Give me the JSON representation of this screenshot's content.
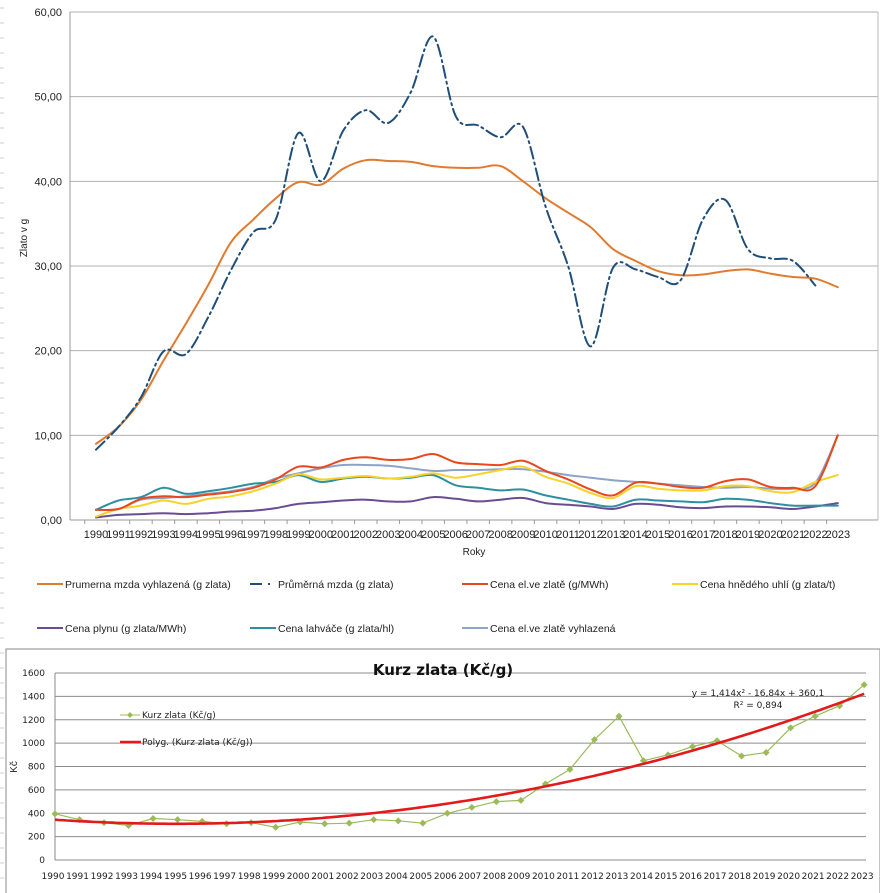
{
  "chart_data": [
    {
      "type": "line",
      "title": "",
      "xlabel": "Roky",
      "ylabel": "Zlato v g",
      "ylim": [
        0,
        60
      ],
      "yticks": [
        "0,00",
        "10,00",
        "20,00",
        "30,00",
        "40,00",
        "50,00",
        "60,00"
      ],
      "ytick_values": [
        0,
        10,
        20,
        30,
        40,
        50,
        60
      ],
      "grid": true,
      "legend_position": "bottom",
      "categories": [
        "1990",
        "1991",
        "1992",
        "1993",
        "1994",
        "1995",
        "1996",
        "1997",
        "1998",
        "1999",
        "2000",
        "2001",
        "2002",
        "2003",
        "2004",
        "2005",
        "2006",
        "2007",
        "2008",
        "2009",
        "2010",
        "2011",
        "2012",
        "2013",
        "2014",
        "2015",
        "2016",
        "2017",
        "2018",
        "2019",
        "2020",
        "2021",
        "2022",
        "2023"
      ],
      "series": [
        {
          "name": "Prumerna mzda vyhlazená (g zlata)",
          "color": "#E07B30",
          "dash": "solid",
          "width": 2,
          "values": [
            9.0,
            11.0,
            14.2,
            18.8,
            23.2,
            27.8,
            32.8,
            35.5,
            38.0,
            39.9,
            39.6,
            41.5,
            42.5,
            42.4,
            42.3,
            41.8,
            41.6,
            41.6,
            41.8,
            40.0,
            38.0,
            36.3,
            34.6,
            32.0,
            30.6,
            29.4,
            28.9,
            29.0,
            29.4,
            29.6,
            29.1,
            28.7,
            28.5,
            27.5
          ]
        },
        {
          "name": "Průměrná mzda (g zlata)",
          "color": "#1F4E79",
          "dash": "12,4,2,4",
          "width": 2,
          "values": [
            8.3,
            11.0,
            14.5,
            19.9,
            19.6,
            24.0,
            29.5,
            34.0,
            35.5,
            45.7,
            40.0,
            46.0,
            48.4,
            46.9,
            50.5,
            57.1,
            47.7,
            46.6,
            45.2,
            46.4,
            37.0,
            30.0,
            20.5,
            29.8,
            29.6,
            28.7,
            28.3,
            35.5,
            37.8,
            32.0,
            30.9,
            30.6,
            27.7,
            null
          ]
        },
        {
          "name": "Cena el.ve zlatě (g/MWh)",
          "color": "#E8481C",
          "dash": "solid",
          "width": 2,
          "values": [
            1.2,
            1.3,
            2.5,
            2.8,
            2.7,
            3.0,
            3.3,
            3.8,
            4.8,
            6.3,
            6.2,
            7.1,
            7.4,
            7.1,
            7.2,
            7.8,
            6.8,
            6.6,
            6.5,
            7.0,
            5.8,
            4.8,
            3.6,
            2.9,
            4.4,
            4.3,
            3.9,
            3.8,
            4.6,
            4.8,
            3.9,
            3.8,
            4.0,
            10.0
          ]
        },
        {
          "name": "Cena hnědého uhlí (g zlata/t)",
          "color": "#F6D22A",
          "dash": "solid",
          "width": 2,
          "values": [
            0.4,
            1.3,
            1.7,
            2.3,
            1.9,
            2.5,
            2.8,
            3.4,
            4.3,
            5.4,
            4.8,
            5.0,
            5.2,
            4.9,
            5.1,
            5.5,
            5.0,
            5.4,
            5.9,
            6.3,
            5.1,
            4.3,
            3.2,
            2.6,
            4.0,
            3.7,
            3.5,
            3.5,
            4.0,
            4.0,
            3.4,
            3.3,
            4.5,
            5.3
          ]
        },
        {
          "name": "Cena plynu (g zlata/MWh)",
          "color": "#6A4C93",
          "dash": "solid",
          "width": 2,
          "values": [
            0.3,
            0.6,
            0.7,
            0.8,
            0.7,
            0.8,
            1.0,
            1.1,
            1.4,
            1.9,
            2.1,
            2.3,
            2.4,
            2.2,
            2.2,
            2.7,
            2.5,
            2.2,
            2.4,
            2.6,
            2.0,
            1.8,
            1.6,
            1.3,
            1.9,
            1.8,
            1.5,
            1.4,
            1.6,
            1.6,
            1.5,
            1.3,
            1.6,
            2.0
          ]
        },
        {
          "name": "Cena lahváče (g zlata/hl)",
          "color": "#2E8FA0",
          "dash": "solid",
          "width": 2,
          "values": [
            1.2,
            2.3,
            2.7,
            3.8,
            3.1,
            3.4,
            3.8,
            4.3,
            4.5,
            5.3,
            4.5,
            4.9,
            5.1,
            4.9,
            5.0,
            5.3,
            4.1,
            3.8,
            3.5,
            3.6,
            2.9,
            2.4,
            1.9,
            1.6,
            2.4,
            2.3,
            2.2,
            2.1,
            2.5,
            2.4,
            2.0,
            1.7,
            1.7,
            1.7
          ]
        },
        {
          "name": "Cena el.ve zlatě vyhlazená",
          "color": "#8EA3C8",
          "dash": "solid",
          "width": 2,
          "values": [
            1.2,
            1.3,
            2.4,
            2.6,
            2.8,
            3.1,
            3.4,
            3.9,
            4.9,
            5.5,
            6.1,
            6.5,
            6.5,
            6.4,
            6.1,
            5.8,
            5.9,
            5.9,
            6.0,
            6.0,
            5.7,
            5.3,
            5.0,
            4.7,
            4.5,
            4.3,
            4.1,
            3.9,
            3.8,
            3.9,
            3.7,
            3.7,
            4.4,
            10.0
          ]
        }
      ]
    },
    {
      "type": "line",
      "title": "Kurz zlata (Kč/g)",
      "xlabel": "",
      "ylabel": "Kč",
      "ylim": [
        0,
        1600
      ],
      "yticks": [
        "0",
        "200",
        "400",
        "600",
        "800",
        "1000",
        "1200",
        "1400",
        "1600"
      ],
      "ytick_values": [
        0,
        200,
        400,
        600,
        800,
        1000,
        1200,
        1400,
        1600
      ],
      "grid": true,
      "legend_position": "top-left",
      "categories": [
        "1990",
        "1991",
        "1992",
        "1993",
        "1994",
        "1995",
        "1996",
        "1997",
        "1998",
        "1999",
        "2000",
        "2001",
        "2002",
        "2003",
        "2004",
        "2005",
        "2006",
        "2007",
        "2008",
        "2009",
        "2010",
        "2011",
        "2012",
        "2013",
        "2014",
        "2015",
        "2016",
        "2017",
        "2018",
        "2019",
        "2020",
        "2021",
        "2022",
        "2023"
      ],
      "series": [
        {
          "name": "Kurz zlata (Kč/g)",
          "color": "#9BBB59",
          "marker": "diamond",
          "values": [
            395,
            345,
            320,
            295,
            355,
            345,
            330,
            310,
            320,
            280,
            325,
            310,
            315,
            345,
            335,
            315,
            400,
            450,
            500,
            510,
            650,
            775,
            1030,
            1230,
            850,
            900,
            970,
            1020,
            890,
            920,
            1130,
            1230,
            1320,
            1500
          ]
        }
      ],
      "trendline": {
        "name": "Polyg. (Kurz zlata (Kč/g))",
        "color": "#E31A1C",
        "type": "polynomial",
        "coefficients": [
          1.414,
          -16.84,
          360.1
        ],
        "equation": "y = 1,414x² - 16,84x + 360,1",
        "r2": "R² = 0,894"
      }
    }
  ]
}
